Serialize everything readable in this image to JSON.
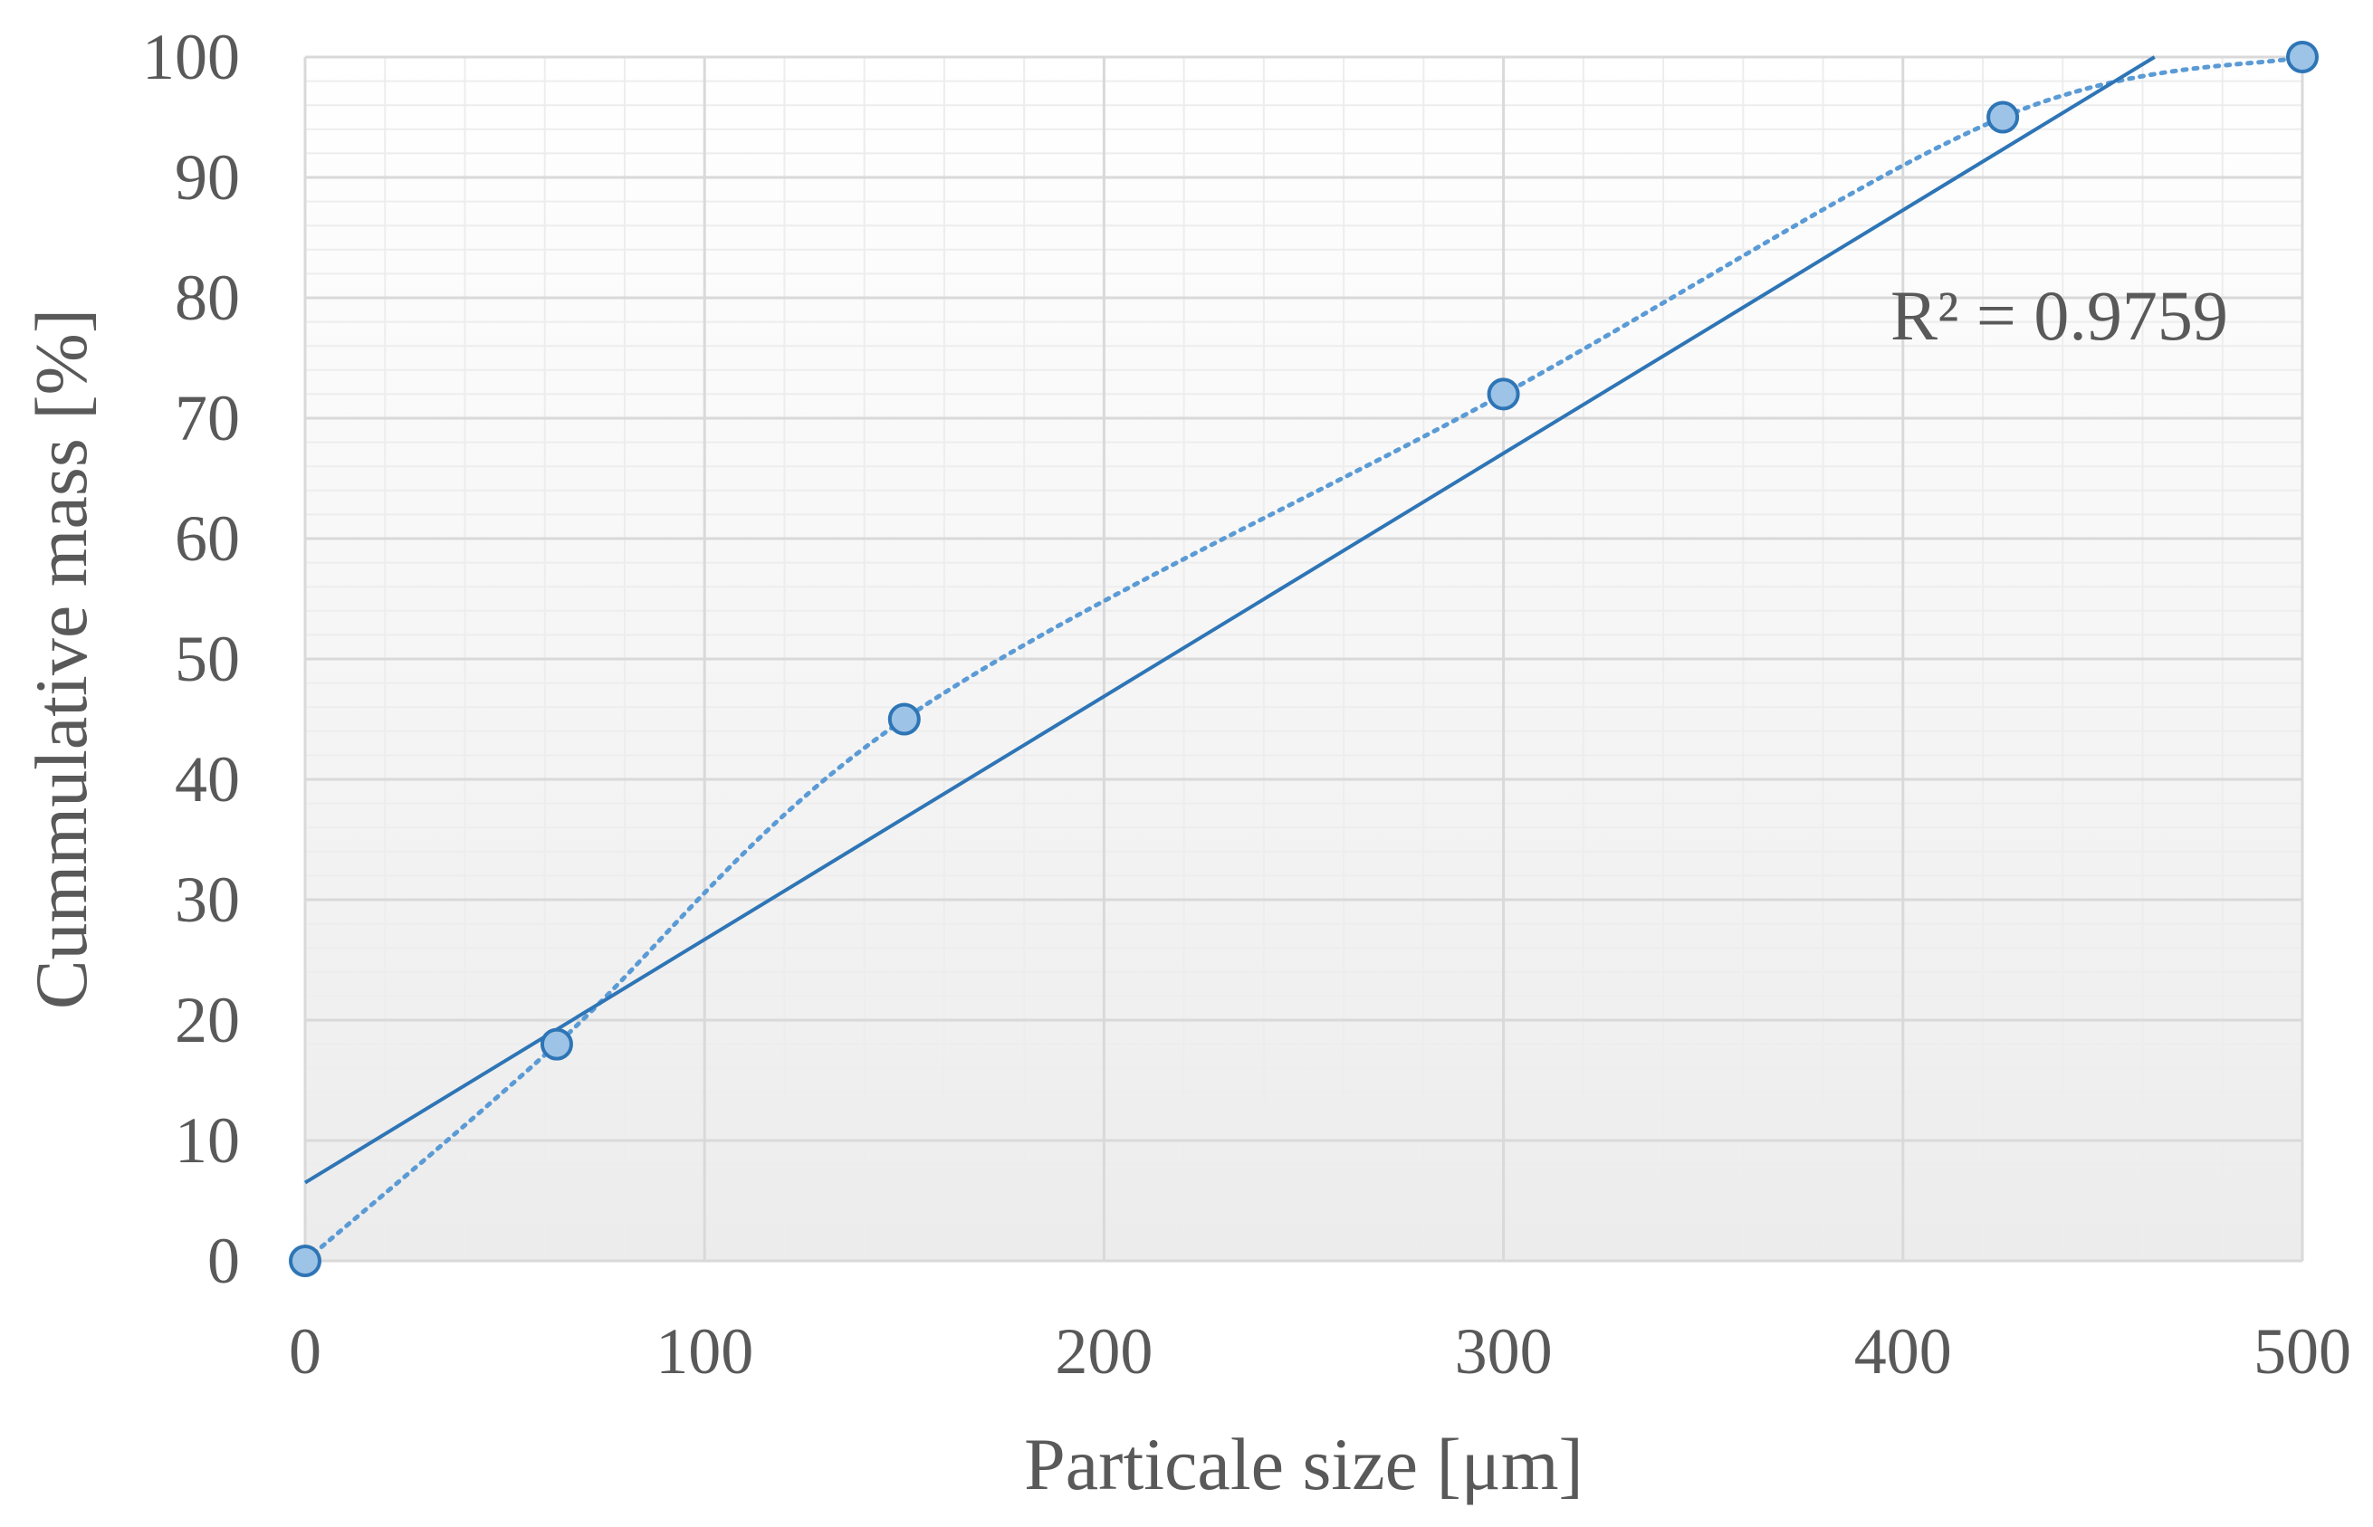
{
  "chart_data": {
    "type": "scatter",
    "title": "",
    "xlabel": "Particale size [μm]",
    "ylabel": "Cummulative mass [%]",
    "xlim": [
      0,
      500
    ],
    "ylim": [
      0,
      100
    ],
    "x_ticks": [
      0,
      100,
      200,
      300,
      400,
      500
    ],
    "y_ticks": [
      0,
      10,
      20,
      30,
      40,
      50,
      60,
      70,
      80,
      90,
      100
    ],
    "grid": true,
    "series": [
      {
        "x": [
          0,
          63,
          150,
          300,
          425,
          500
        ],
        "y": [
          0,
          18,
          45,
          72,
          95,
          100
        ],
        "marker": "circle",
        "connector": "smoothed-dotted"
      }
    ],
    "trendline": {
      "type": "linear",
      "x_range": [
        0,
        463
      ],
      "y_range": [
        6.5,
        100
      ],
      "r_squared_label": "R² = 0.9759",
      "label_position": "top-right"
    },
    "colors": {
      "series_line": "#5b9bd5",
      "trendline": "#2e75b6",
      "marker_fill": "#9dc3e6",
      "marker_stroke": "#2e75b6",
      "text": "#595959",
      "major_grid": "#d9d9d9",
      "minor_grid": "#ededed"
    }
  }
}
